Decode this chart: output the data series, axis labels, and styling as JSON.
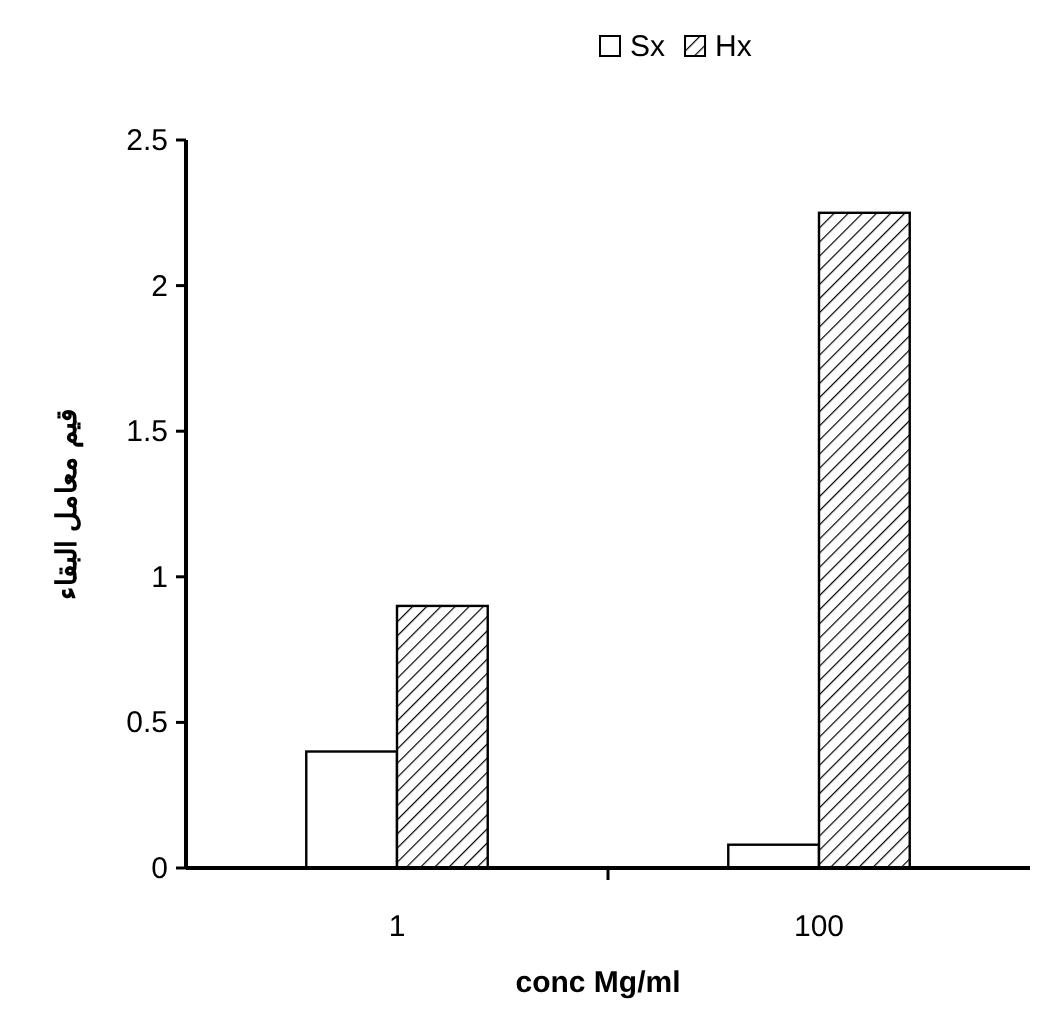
{
  "chart_data": {
    "type": "bar",
    "xlabel": "conc Mg/ml",
    "ylabel": "قيم معامل البقاء",
    "categories": [
      "1",
      "100"
    ],
    "series": [
      {
        "name": "Sx",
        "color": "#ffffff",
        "values": [
          0.4,
          0.08
        ]
      },
      {
        "name": "Hx",
        "color": "#000000",
        "values": [
          0.9,
          2.25
        ]
      }
    ],
    "ylim": [
      0,
      2.5
    ],
    "yticks": [
      0,
      0.5,
      1,
      1.5,
      2,
      2.5
    ],
    "grid": false,
    "legend": "top"
  }
}
